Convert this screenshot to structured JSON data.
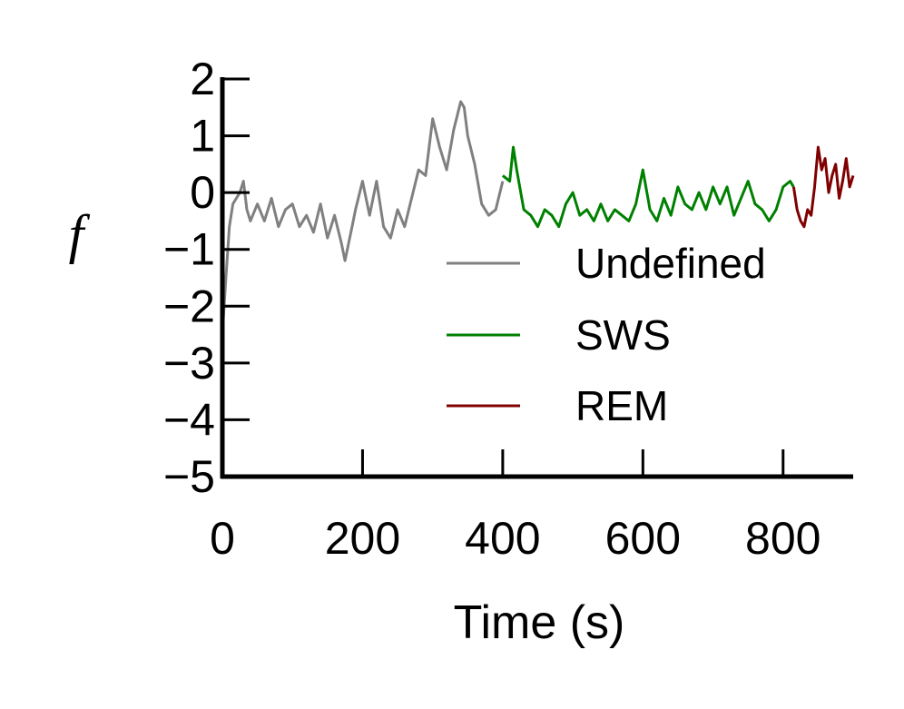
{
  "chart_data": {
    "type": "line",
    "title": "",
    "xlabel": "Time (s)",
    "ylabel": "f",
    "xlim": [
      0,
      900
    ],
    "ylim": [
      -5,
      2
    ],
    "xticks": [
      0,
      200,
      400,
      600,
      800
    ],
    "xtick_labels": [
      "0",
      "200",
      "400",
      "600",
      "800"
    ],
    "yticks": [
      2,
      1,
      0,
      -1,
      -2,
      -3,
      -4,
      -5
    ],
    "ytick_labels": [
      "2",
      "1",
      "0",
      "−1",
      "−2",
      "−3",
      "−4",
      "−5"
    ],
    "grid": false,
    "legend_position": "right",
    "series": [
      {
        "name": "Undefined",
        "color": "#808080",
        "x": [
          0,
          5,
          10,
          15,
          20,
          25,
          30,
          35,
          40,
          50,
          60,
          70,
          80,
          90,
          100,
          110,
          120,
          130,
          140,
          150,
          160,
          170,
          175,
          180,
          185,
          190,
          200,
          210,
          220,
          230,
          240,
          250,
          260,
          270,
          280,
          290,
          300,
          310,
          320,
          330,
          340,
          345,
          350,
          360,
          370,
          380,
          390,
          400
        ],
        "y": [
          -2.5,
          -1.5,
          -0.6,
          -0.2,
          -0.1,
          0.0,
          0.2,
          -0.3,
          -0.5,
          -0.2,
          -0.5,
          -0.1,
          -0.6,
          -0.3,
          -0.2,
          -0.6,
          -0.4,
          -0.7,
          -0.2,
          -0.8,
          -0.4,
          -0.9,
          -1.2,
          -0.9,
          -0.6,
          -0.3,
          0.2,
          -0.4,
          0.2,
          -0.6,
          -0.8,
          -0.3,
          -0.6,
          -0.1,
          0.4,
          0.3,
          1.3,
          0.8,
          0.4,
          1.1,
          1.6,
          1.5,
          1.0,
          0.5,
          -0.2,
          -0.4,
          -0.3,
          0.2
        ]
      },
      {
        "name": "SWS",
        "color": "#008000",
        "x": [
          400,
          410,
          415,
          420,
          430,
          440,
          450,
          460,
          470,
          480,
          490,
          500,
          510,
          520,
          530,
          540,
          550,
          560,
          570,
          580,
          590,
          600,
          610,
          620,
          630,
          640,
          650,
          660,
          670,
          680,
          690,
          700,
          710,
          720,
          730,
          740,
          750,
          760,
          770,
          780,
          790,
          800,
          810,
          815
        ],
        "y": [
          0.3,
          0.2,
          0.8,
          0.4,
          -0.3,
          -0.4,
          -0.6,
          -0.3,
          -0.4,
          -0.6,
          -0.2,
          0.0,
          -0.4,
          -0.3,
          -0.5,
          -0.2,
          -0.5,
          -0.3,
          -0.4,
          -0.5,
          -0.2,
          0.4,
          -0.3,
          -0.5,
          -0.1,
          -0.4,
          0.1,
          -0.2,
          -0.3,
          0.0,
          -0.3,
          0.1,
          -0.2,
          0.1,
          -0.4,
          -0.1,
          0.2,
          -0.2,
          -0.3,
          -0.5,
          -0.3,
          0.1,
          0.2,
          0.1
        ]
      },
      {
        "name": "REM",
        "color": "#800000",
        "x": [
          815,
          820,
          825,
          830,
          835,
          840,
          845,
          850,
          855,
          860,
          865,
          870,
          875,
          880,
          885,
          890,
          895,
          900
        ],
        "y": [
          0.1,
          -0.3,
          -0.5,
          -0.6,
          -0.3,
          -0.4,
          0.1,
          0.8,
          0.4,
          0.6,
          0.0,
          0.3,
          0.5,
          -0.1,
          0.2,
          0.6,
          0.1,
          0.3
        ]
      }
    ]
  }
}
